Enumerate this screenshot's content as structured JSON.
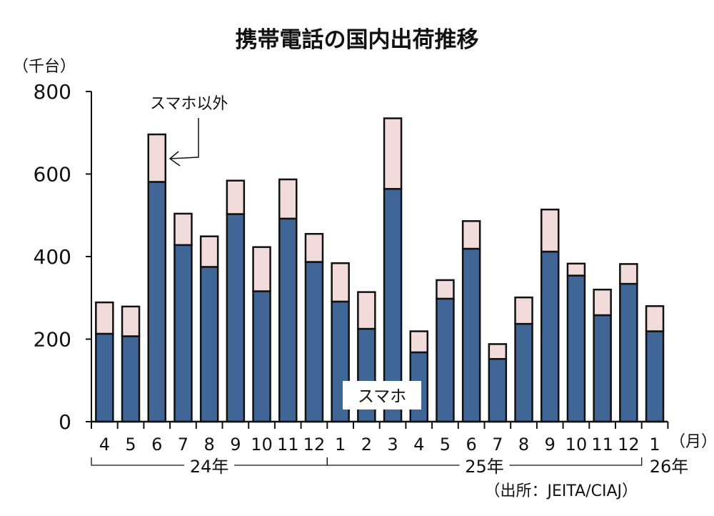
{
  "chart_data": {
    "type": "bar",
    "stacked": true,
    "title": "携帯電話の国内出荷推移",
    "ylabel": "（千台）",
    "xlabel_unit": "（月）",
    "ylim": [
      0,
      800
    ],
    "yticks": [
      0,
      200,
      400,
      600,
      800
    ],
    "categories": [
      "4",
      "5",
      "6",
      "7",
      "8",
      "9",
      "10",
      "11",
      "12",
      "1",
      "2",
      "3",
      "4",
      "5",
      "6",
      "7",
      "8",
      "9",
      "10",
      "11",
      "12",
      "1"
    ],
    "year_groups": [
      {
        "label": "24年",
        "start": 0,
        "end": 8
      },
      {
        "label": "25年",
        "start": 9,
        "end": 20
      },
      {
        "label": "26年",
        "start": 21,
        "end": 21
      }
    ],
    "series": [
      {
        "name": "スマホ",
        "color": "#3f6697",
        "values": [
          213,
          207,
          581,
          428,
          375,
          503,
          316,
          492,
          387,
          291,
          225,
          564,
          168,
          298,
          419,
          152,
          237,
          412,
          354,
          258,
          334,
          219
        ]
      },
      {
        "name": "スマホ以外",
        "color": "#f2dcdb",
        "values": [
          76,
          72,
          115,
          76,
          74,
          81,
          107,
          95,
          68,
          93,
          89,
          171,
          51,
          45,
          67,
          36,
          64,
          102,
          29,
          62,
          48,
          61
        ]
      }
    ],
    "totals": [
      289,
      279,
      696,
      504,
      449,
      584,
      423,
      587,
      455,
      384,
      314,
      735,
      219,
      343,
      486,
      188,
      301,
      514,
      383,
      320,
      382,
      280
    ],
    "annotations": {
      "non_smartphone_label": "スマホ以外",
      "smartphone_label": "スマホ"
    },
    "source": "（出所：JEITA/CIAJ）"
  }
}
